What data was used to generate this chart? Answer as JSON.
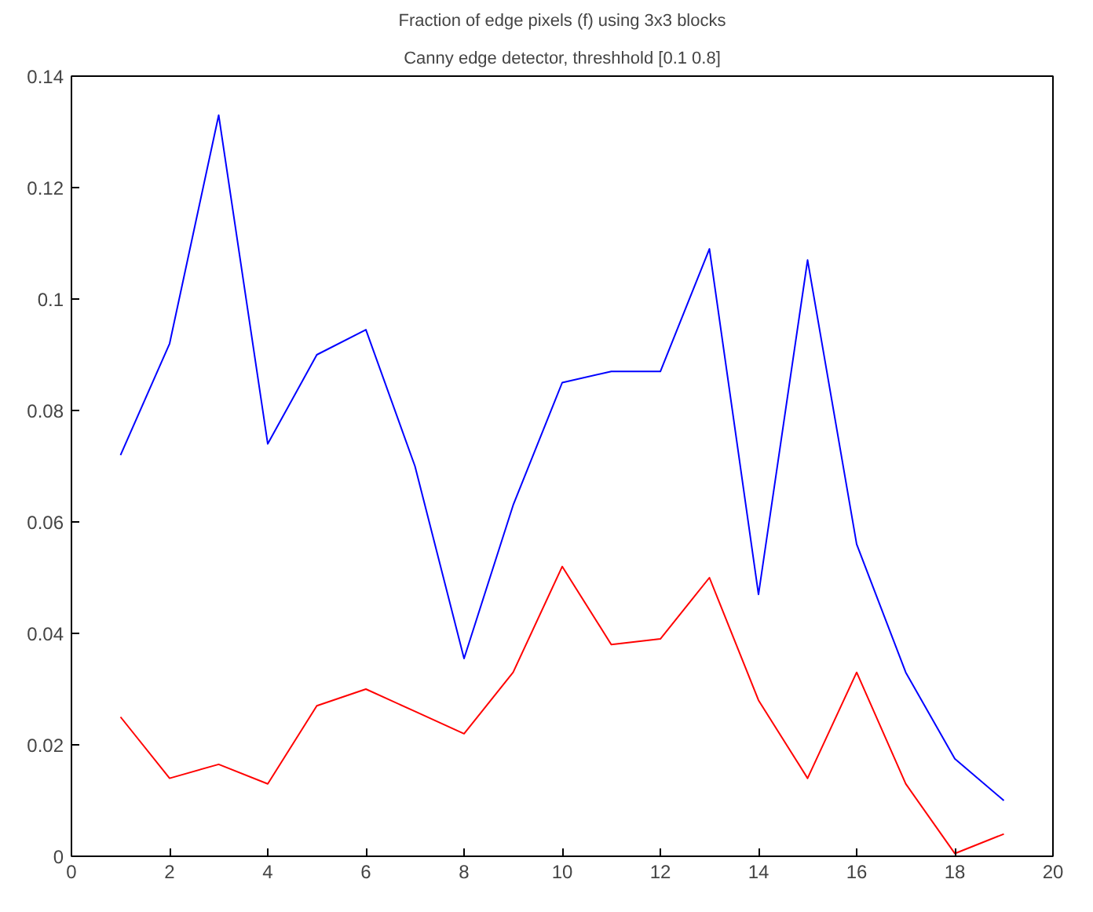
{
  "chart_data": {
    "type": "line",
    "title": "Fraction of edge pixels (f) using 3x3 blocks",
    "subtitle": "Canny edge detector, threshhold [0.1 0.8]",
    "x": [
      1,
      2,
      3,
      4,
      5,
      6,
      7,
      8,
      9,
      10,
      11,
      12,
      13,
      14,
      15,
      16,
      17,
      18,
      19
    ],
    "series": [
      {
        "color": "#0000ff",
        "values": [
          0.072,
          0.092,
          0.133,
          0.074,
          0.09,
          0.0945,
          0.07,
          0.0355,
          0.063,
          0.085,
          0.087,
          0.087,
          0.109,
          0.047,
          0.107,
          0.056,
          0.033,
          0.0175,
          0.01
        ]
      },
      {
        "color": "#ff0000",
        "values": [
          0.025,
          0.014,
          0.0165,
          0.013,
          0.027,
          0.03,
          0.026,
          0.022,
          0.033,
          0.052,
          0.038,
          0.039,
          0.05,
          0.028,
          0.014,
          0.033,
          0.013,
          0.0005,
          0.004
        ]
      }
    ],
    "xlim": [
      0,
      20
    ],
    "xticks": [
      0,
      2,
      4,
      6,
      8,
      10,
      12,
      14,
      16,
      18,
      20
    ],
    "ylim": [
      0,
      0.14
    ],
    "yticks": [
      0,
      0.02,
      0.04,
      0.06,
      0.08,
      0.1,
      0.12,
      0.14
    ],
    "grid": false
  }
}
